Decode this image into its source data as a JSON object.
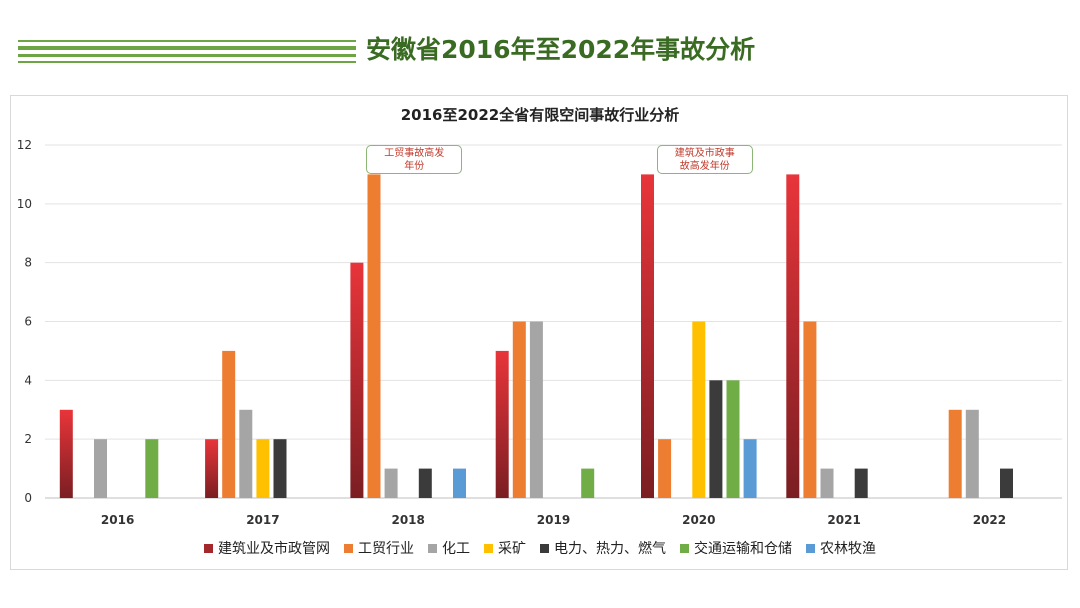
{
  "page": {
    "title": "安徽省2016年至2022年事故分析"
  },
  "chart_data": {
    "type": "bar",
    "title": "2016至2022全省有限空间事故行业分析",
    "xlabel": "",
    "ylabel": "",
    "ylim": [
      0,
      12
    ],
    "yticks": [
      0,
      2,
      4,
      6,
      8,
      10,
      12
    ],
    "grid": true,
    "legend_position": "bottom",
    "categories": [
      "2016",
      "2017",
      "2018",
      "2019",
      "2020",
      "2021",
      "2022"
    ],
    "series": [
      {
        "name": "建筑业及市政管网",
        "color": "#e8353a",
        "values": [
          3,
          2,
          8,
          5,
          11,
          11,
          0
        ]
      },
      {
        "name": "工贸行业",
        "color": "#ed7d31",
        "values": [
          0,
          5,
          11,
          6,
          2,
          6,
          3
        ]
      },
      {
        "name": "化工",
        "color": "#a5a5a5",
        "values": [
          2,
          3,
          1,
          6,
          0,
          1,
          3
        ]
      },
      {
        "name": "采矿",
        "color": "#ffc000",
        "values": [
          0,
          2,
          0,
          0,
          6,
          0,
          0
        ]
      },
      {
        "name": "电力、热力、燃气",
        "color": "#3b3b3b",
        "values": [
          0,
          2,
          1,
          0,
          4,
          1,
          1
        ]
      },
      {
        "name": "交通运输和仓储",
        "color": "#70ad47",
        "values": [
          2,
          0,
          0,
          1,
          4,
          0,
          0
        ]
      },
      {
        "name": "农林牧渔",
        "color": "#5b9bd5",
        "values": [
          0,
          0,
          1,
          0,
          2,
          0,
          0
        ]
      }
    ],
    "annotations": [
      {
        "text": "工贸事故高发年份",
        "line1": "工贸事故高发",
        "line2": "年份",
        "category": "2018",
        "color": "#c0392b"
      },
      {
        "text": "建筑及市政事故高发年份",
        "line1": "建筑及市政事",
        "line2": "故高发年份",
        "category": "2020",
        "color": "#c0392b"
      }
    ]
  }
}
